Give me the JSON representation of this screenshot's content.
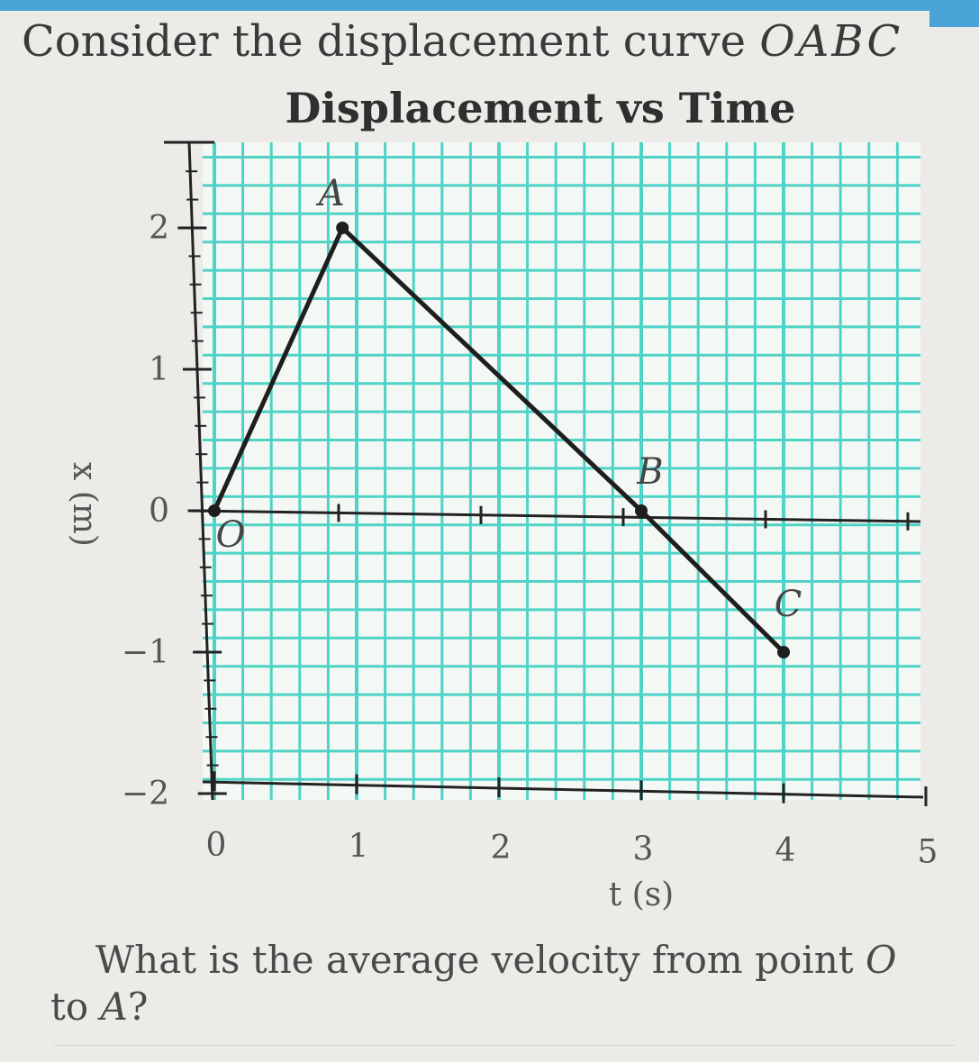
{
  "prompt": {
    "text": "Consider the displacement curve ",
    "curve_name": "OABC"
  },
  "question": {
    "line1": "What is the average velocity from point ",
    "line1_point": "O",
    "line2": "to ",
    "line2_point": "A",
    "line2_end": "?"
  },
  "colors": {
    "grid": "#4fd3c6",
    "line": "#1e1e1e",
    "accent": "#4aa3d6"
  },
  "chart_data": {
    "type": "line",
    "title": "Displacement vs Time",
    "xlabel": "t (s)",
    "ylabel": "x (m)",
    "xlim": [
      0,
      5
    ],
    "ylim": [
      -2,
      2.5
    ],
    "x_ticks": [
      0,
      1,
      2,
      3,
      4,
      5
    ],
    "y_ticks": [
      2,
      1,
      0,
      -1,
      -2
    ],
    "grid": true,
    "series": [
      {
        "points": [
          {
            "label": "O",
            "t": 0,
            "x": 0
          },
          {
            "label": "A",
            "t": 0.9,
            "x": 2
          },
          {
            "label": "B",
            "t": 3,
            "x": 0
          },
          {
            "label": "C",
            "t": 4,
            "x": -1
          }
        ]
      }
    ]
  }
}
